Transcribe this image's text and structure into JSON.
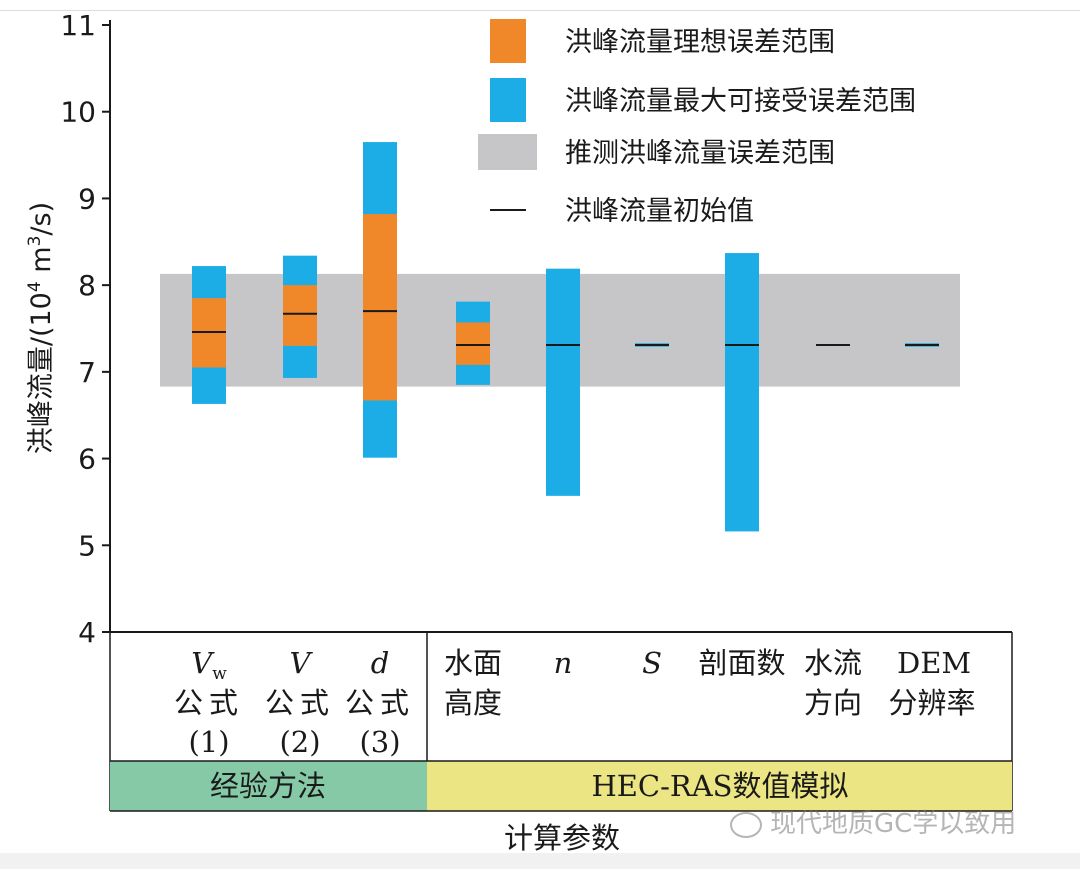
{
  "chart_data": {
    "type": "range-bar",
    "ylabel": "洪峰流量/(10⁴ m³/s)",
    "ylabel_parts": [
      "洪峰流量/(10",
      "4",
      " m",
      "3",
      "/s)"
    ],
    "ylim": [
      4,
      11
    ],
    "yticks": [
      4,
      5,
      6,
      7,
      8,
      9,
      10,
      11
    ],
    "xlabel": "计算参数",
    "inferred_range": [
      6.83,
      8.13
    ],
    "legend": [
      {
        "key": "ideal",
        "label": "洪峰流量理想误差范围",
        "color": "#f0882a"
      },
      {
        "key": "max",
        "label": "洪峰流量最大可接受误差范围",
        "color": "#1cade6"
      },
      {
        "key": "inferred",
        "label": "推测洪峰流量误差范围",
        "color": "#c6c6c8"
      },
      {
        "key": "initial",
        "label": "洪峰流量初始值",
        "color": "#1a1a1a"
      }
    ],
    "groups": [
      {
        "name": "经验方法",
        "color": "#86c9a6"
      },
      {
        "name": "HEC-RAS数值模拟",
        "color": "#ece584"
      }
    ],
    "categories": [
      {
        "symbol": "V",
        "sub": "w",
        "lines": [
          "公式",
          "(1)"
        ],
        "max": [
          6.63,
          8.22
        ],
        "ideal": [
          7.05,
          7.85
        ],
        "initial": 7.46
      },
      {
        "symbol": "V",
        "sub": "",
        "lines": [
          "公式",
          "(2)"
        ],
        "max": [
          6.93,
          8.34
        ],
        "ideal": [
          7.3,
          8.0
        ],
        "initial": 7.67
      },
      {
        "symbol": "d",
        "sub": "",
        "lines": [
          "公式",
          "(3)"
        ],
        "max": [
          6.01,
          9.65
        ],
        "ideal": [
          6.67,
          8.82
        ],
        "initial": 7.7
      },
      {
        "symbol": "",
        "sub": "",
        "lines": [
          "水面",
          "高度"
        ],
        "max": [
          6.85,
          7.81
        ],
        "ideal": [
          7.08,
          7.57
        ],
        "initial": 7.31
      },
      {
        "symbol": "n",
        "sub": "",
        "lines": [],
        "max": [
          5.57,
          8.19
        ],
        "ideal": null,
        "initial": 7.31
      },
      {
        "symbol": "S",
        "sub": "",
        "lines": [],
        "max": [
          7.29,
          7.33
        ],
        "ideal": null,
        "initial": 7.31
      },
      {
        "symbol": "",
        "sub": "",
        "lines": [
          "剖面数"
        ],
        "max": [
          5.16,
          8.37
        ],
        "ideal": null,
        "initial": 7.31
      },
      {
        "symbol": "",
        "sub": "",
        "lines": [
          "水流",
          "方向"
        ],
        "max": null,
        "ideal": null,
        "initial": 7.31
      },
      {
        "symbol": "DEM",
        "sub": "",
        "lines": [
          "分辨率"
        ],
        "max": [
          7.29,
          7.33
        ],
        "ideal": null,
        "initial": 7.31
      }
    ]
  },
  "watermark": {
    "text": "现代地质GC学以致用"
  }
}
